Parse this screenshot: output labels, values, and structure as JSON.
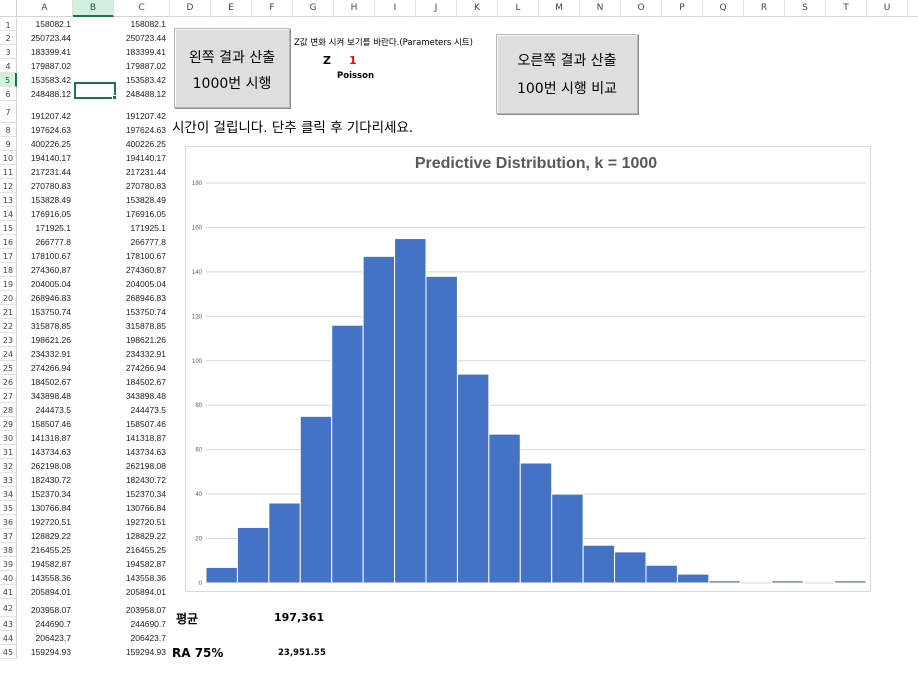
{
  "columns": [
    "A",
    "B",
    "C",
    "D",
    "E",
    "F",
    "G",
    "H",
    "I",
    "J",
    "K",
    "L",
    "M",
    "N",
    "O",
    "P",
    "Q",
    "R",
    "S",
    "T",
    "U"
  ],
  "selected_column": "B",
  "rows": [
    "1",
    "2",
    "3",
    "4",
    "5",
    "6",
    "7",
    "8",
    "9",
    "10",
    "11",
    "12",
    "13",
    "14",
    "15",
    "16",
    "17",
    "18",
    "19",
    "20",
    "21",
    "22",
    "23",
    "24",
    "25",
    "26",
    "27",
    "28",
    "29",
    "30",
    "31",
    "32",
    "33",
    "34",
    "35",
    "36",
    "37",
    "38",
    "39",
    "40",
    "41",
    "42",
    "43",
    "44",
    "45"
  ],
  "selected_row": "5",
  "col_a": [
    "158082.1",
    "250723.44",
    "183399.41",
    "179887.02",
    "153583.42",
    "248488.12",
    "191207.42",
    "197624.63",
    "400226.25",
    "194140.17",
    "217231.44",
    "270780.83",
    "153828.49",
    "176916.05",
    "171925.1",
    "266777.8",
    "178100.67",
    "274360.87",
    "204005.04",
    "268946.83",
    "153750.74",
    "315878.85",
    "198621.26",
    "234332.91",
    "274266.94",
    "184502.67",
    "343898.48",
    "244473.5",
    "158507.46",
    "141318.87",
    "143734.63",
    "262198.08",
    "182430.72",
    "152370.34",
    "130766.84",
    "192720.51",
    "128829.22",
    "216455.25",
    "194582.87",
    "143558.36",
    "205894.01",
    "203958.07",
    "244690.7",
    "206423.7",
    "159294.93"
  ],
  "col_c": [
    "158082.1",
    "250723.44",
    "183399.41",
    "179887.02",
    "153583.42",
    "248488.12",
    "191207.42",
    "197624.63",
    "400226.25",
    "194140.17",
    "217231.44",
    "270780.83",
    "153828.49",
    "176916.05",
    "171925.1",
    "266777.8",
    "178100.67",
    "274360.87",
    "204005.04",
    "268946.83",
    "153750.74",
    "315878.85",
    "198621.26",
    "234332.91",
    "274266.94",
    "184502.67",
    "343898.48",
    "244473.5",
    "158507.46",
    "141318.87",
    "143734.63",
    "262198.08",
    "182430.72",
    "152370.34",
    "130766.84",
    "192720.51",
    "128829.22",
    "216455.25",
    "194582.87",
    "143558.36",
    "205894.01",
    "203958.07",
    "244690.7",
    "206423.7",
    "159294.93"
  ],
  "left_button": {
    "line1": "왼쪽 결과 산출",
    "line2": "1000번 시행"
  },
  "right_button": {
    "line1": "오른쪽 결과 산출",
    "line2": "100번 시행 비교"
  },
  "param_note": "Z값 변화 시켜 보기를 바란다.(Parameters 시트)",
  "z_label": "Z",
  "z_value": "1",
  "dist_label": "Poisson",
  "wait_note": "시간이 걸립니다. 단추 클릭 후 기다리세요.",
  "mean_label": "평균",
  "mean_value": "197,361",
  "ra_label": "RA 75%",
  "ra_value": "23,951.55",
  "colors": {
    "bar": "#4472c4",
    "accent": "#217346",
    "z_value": "#ff0000",
    "grid": "#d9d9d9"
  },
  "chart_data": {
    "type": "bar",
    "title": "Predictive Distribution, k = 1000",
    "xlabel": "",
    "ylabel": "",
    "ylim": [
      0,
      180
    ],
    "yticks": [
      0,
      20,
      40,
      60,
      80,
      100,
      120,
      140,
      160,
      180
    ],
    "grid": true,
    "values": [
      7,
      25,
      36,
      75,
      116,
      147,
      155,
      138,
      94,
      67,
      54,
      40,
      17,
      14,
      8,
      4,
      1,
      0,
      1,
      0,
      1
    ]
  }
}
